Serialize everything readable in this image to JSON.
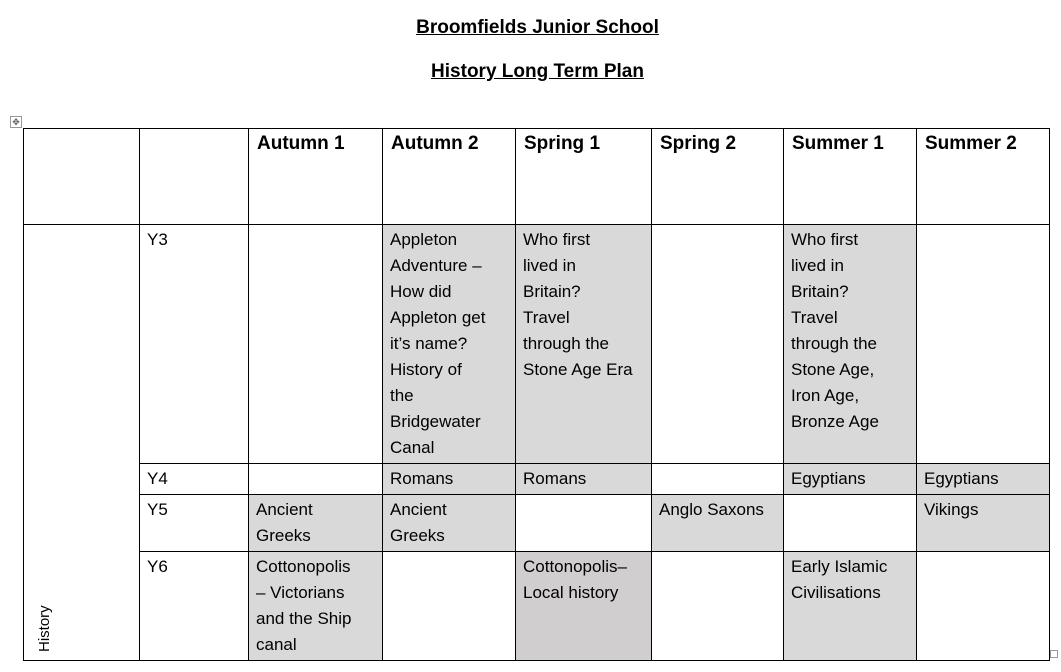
{
  "title": "Broomfields Junior School",
  "subtitle": "History Long Term Plan",
  "subject": "History",
  "colors": {
    "shade": "#d9d9d9",
    "shade_dark": "#d0cece"
  },
  "headers": [
    "Autumn 1",
    "Autumn 2",
    "Spring 1",
    "Spring 2",
    "Summer 1",
    "Summer 2"
  ],
  "rows": [
    {
      "year": "Y3",
      "cells": [
        {
          "text": "",
          "shade": false
        },
        {
          "text": "Appleton\nAdventure –\nHow did\nAppleton get\nit’s name?\nHistory of\nthe\nBridgewater\nCanal",
          "shade": true
        },
        {
          "text": "Who first\nlived in\nBritain?\nTravel\nthrough the\nStone Age Era",
          "shade": true
        },
        {
          "text": "",
          "shade": false
        },
        {
          "text": "Who first\nlived in\nBritain?\nTravel\nthrough the\nStone Age,\nIron Age,\nBronze Age",
          "shade": true
        },
        {
          "text": "",
          "shade": false
        }
      ]
    },
    {
      "year": "Y4",
      "cells": [
        {
          "text": "",
          "shade": false
        },
        {
          "text": "Romans",
          "shade": true
        },
        {
          "text": "Romans",
          "shade": true
        },
        {
          "text": "",
          "shade": false
        },
        {
          "text": "Egyptians",
          "shade": true
        },
        {
          "text": "Egyptians",
          "shade": true
        }
      ]
    },
    {
      "year": "Y5",
      "cells": [
        {
          "text": "Ancient\nGreeks",
          "shade": true
        },
        {
          "text": "Ancient\nGreeks",
          "shade": true
        },
        {
          "text": "",
          "shade": false
        },
        {
          "text": "Anglo Saxons",
          "shade": true
        },
        {
          "text": "",
          "shade": false
        },
        {
          "text": "Vikings",
          "shade": true
        }
      ]
    },
    {
      "year": "Y6",
      "cells": [
        {
          "text": "Cottonopolis\n– Victorians\nand the Ship\ncanal",
          "shade": true
        },
        {
          "text": "",
          "shade": false
        },
        {
          "text": "Cottonopolis–\nLocal history",
          "shade": "dark"
        },
        {
          "text": "",
          "shade": false
        },
        {
          "text": "Early Islamic\nCivilisations",
          "shade": true
        },
        {
          "text": "",
          "shade": false
        }
      ]
    }
  ]
}
